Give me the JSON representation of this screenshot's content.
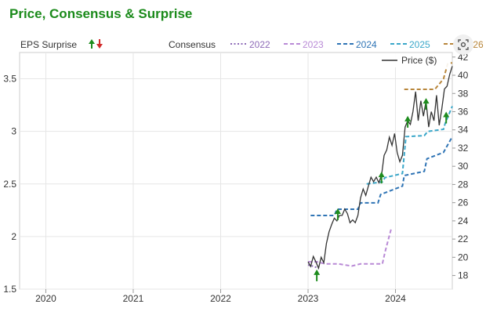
{
  "title": "Price, Consensus & Surprise",
  "legend": {
    "eps_surprise_label": "EPS Surprise",
    "consensus_label": "Consensus",
    "price_label": "Price ($)"
  },
  "colors": {
    "title": "#1a8a1a",
    "price": "#333333",
    "c2022": "#8e6bb8",
    "c2023": "#b98ad6",
    "c2024": "#2f74b5",
    "c2025": "#3aa7c9",
    "c2026": "#b8863b",
    "surprise_up": "#1e8c1e",
    "surprise_down": "#d12a2a"
  },
  "chart_data": {
    "type": "line",
    "title": "Price, Consensus & Surprise",
    "x_ticks": [
      "2020",
      "2021",
      "2022",
      "2023",
      "2024"
    ],
    "x_range": [
      2019.7,
      2024.65
    ],
    "eps_axis": {
      "label": "EPS Surprise",
      "ticks": [
        1.5,
        2,
        2.5,
        3,
        3.5
      ],
      "range": [
        1.5,
        3.75
      ]
    },
    "price_axis": {
      "label": "Price ($)",
      "ticks": [
        18,
        20,
        22,
        24,
        26,
        28,
        30,
        32,
        34,
        36,
        38,
        40,
        42
      ],
      "range": [
        16.5,
        42.5
      ]
    },
    "legend_position": "top",
    "grid": true,
    "series": [
      {
        "name": "2022",
        "axis": "eps",
        "color_key": "c2022",
        "x": [
          2023.0,
          2023.05,
          2023.12
        ],
        "y": [
          1.73,
          1.72,
          1.7
        ]
      },
      {
        "name": "2023",
        "axis": "eps",
        "color_key": "c2023",
        "x": [
          2023.0,
          2023.1,
          2023.2,
          2023.35,
          2023.5,
          2023.6,
          2023.65,
          2023.85,
          2023.88,
          2023.95
        ],
        "y": [
          1.76,
          1.76,
          1.74,
          1.74,
          1.72,
          1.74,
          1.74,
          1.74,
          1.85,
          2.07
        ]
      },
      {
        "name": "2024",
        "axis": "eps",
        "color_key": "c2024",
        "x": [
          2023.03,
          2023.3,
          2023.33,
          2023.57,
          2023.6,
          2023.8,
          2023.83,
          2024.08,
          2024.1,
          2024.33,
          2024.36,
          2024.55,
          2024.65
        ],
        "y": [
          2.2,
          2.2,
          2.26,
          2.26,
          2.32,
          2.32,
          2.4,
          2.48,
          2.58,
          2.62,
          2.74,
          2.8,
          2.95
        ]
      },
      {
        "name": "2025",
        "axis": "eps",
        "color_key": "c2025",
        "x": [
          2023.67,
          2023.85,
          2023.88,
          2024.08,
          2024.12,
          2024.33,
          2024.37,
          2024.55,
          2024.57,
          2024.65
        ],
        "y": [
          2.5,
          2.52,
          2.56,
          2.6,
          2.95,
          2.96,
          3.0,
          3.02,
          3.08,
          3.24
        ]
      },
      {
        "name": "2026",
        "axis": "eps",
        "color_key": "c2026",
        "x": [
          2024.1,
          2024.45,
          2024.5,
          2024.55,
          2024.6,
          2024.65
        ],
        "y": [
          3.4,
          3.4,
          3.45,
          3.5,
          3.65,
          3.65
        ]
      },
      {
        "name": "Price ($)",
        "axis": "price",
        "color_key": "price",
        "x": [
          2023.0,
          2023.03,
          2023.06,
          2023.09,
          2023.12,
          2023.15,
          2023.18,
          2023.21,
          2023.24,
          2023.27,
          2023.3,
          2023.33,
          2023.36,
          2023.39,
          2023.42,
          2023.45,
          2023.48,
          2023.51,
          2023.54,
          2023.57,
          2023.6,
          2023.63,
          2023.66,
          2023.69,
          2023.72,
          2023.75,
          2023.78,
          2023.81,
          2023.84,
          2023.87,
          2023.9,
          2023.93,
          2023.96,
          2023.99,
          2024.02,
          2024.05,
          2024.08,
          2024.11,
          2024.14,
          2024.17,
          2024.2,
          2024.23,
          2024.26,
          2024.29,
          2024.32,
          2024.35,
          2024.38,
          2024.41,
          2024.44,
          2024.47,
          2024.5,
          2024.53,
          2024.56,
          2024.59,
          2024.62,
          2024.65
        ],
        "y": [
          19.5,
          19.0,
          20.1,
          19.5,
          18.8,
          20.0,
          19.4,
          21.5,
          22.8,
          23.6,
          24.3,
          24.0,
          24.6,
          24.6,
          25.3,
          24.8,
          23.8,
          24.1,
          23.8,
          24.6,
          26.5,
          27.5,
          26.8,
          27.8,
          28.8,
          28.3,
          28.8,
          28.2,
          29.0,
          31.2,
          31.8,
          33.2,
          32.3,
          33.6,
          31.5,
          30.5,
          31.2,
          34.3,
          35.0,
          34.6,
          36.0,
          38.2,
          35.0,
          37.2,
          35.5,
          37.2,
          34.3,
          36.0,
          35.0,
          37.8,
          34.5,
          36.3,
          38.5,
          38.8,
          40.1,
          41.0
        ]
      }
    ],
    "surprises": [
      {
        "x": 2023.1,
        "eps": 1.62,
        "direction": "up"
      },
      {
        "x": 2023.34,
        "eps": 2.2,
        "direction": "up"
      },
      {
        "x": 2023.84,
        "eps": 2.55,
        "direction": "up"
      },
      {
        "x": 2024.14,
        "eps": 3.08,
        "direction": "up"
      },
      {
        "x": 2024.35,
        "eps": 3.25,
        "direction": "up"
      },
      {
        "x": 2024.58,
        "eps": 3.12,
        "direction": "up"
      }
    ]
  }
}
